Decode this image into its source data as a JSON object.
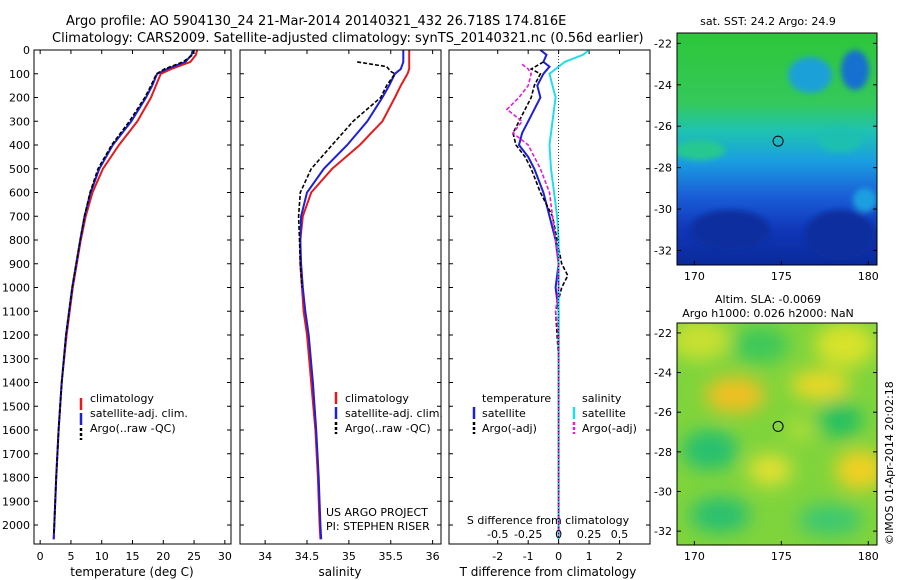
{
  "title": {
    "line1": "Argo profile: AO 5904130_24 21-Mar-2014 20140321_432 26.718S 174.816E",
    "line2": "Climatology: CARS2009. Satellite-adjusted climatology: synTS_20140321.nc (0.56d earlier)"
  },
  "credits": {
    "line1": "US ARGO PROJECT",
    "line2": "PI: STEPHEN RISER"
  },
  "side_stamp": "©IMOS 01-Apr-2014 20:02:18",
  "colors": {
    "climatology": "#e41a1c",
    "satellite": "#1f1fd6",
    "argo": "#000000",
    "sal_satellite": "#22dde8",
    "sal_argo": "#e020d0"
  },
  "chart_data": [
    {
      "type": "line",
      "id": "temperature",
      "xlabel": "temperature (deg C)",
      "ylabel": "",
      "xlim": [
        -1,
        31
      ],
      "ylim": [
        2080,
        0
      ],
      "xticks": [
        0,
        5,
        10,
        15,
        20,
        25,
        30
      ],
      "yticks": [
        0,
        100,
        200,
        300,
        400,
        500,
        600,
        700,
        800,
        900,
        1000,
        1100,
        1200,
        1300,
        1400,
        1500,
        1600,
        1700,
        1800,
        1900,
        2000
      ],
      "legend": [
        "climatology",
        "satellite-adj. clim.",
        "Argo(..raw -QC)"
      ],
      "series": [
        {
          "name": "climatology",
          "depth": [
            0,
            20,
            50,
            80,
            100,
            150,
            200,
            300,
            400,
            500,
            600,
            700,
            800,
            1000,
            1200,
            1400,
            1600,
            1800,
            2000,
            2060
          ],
          "values": [
            25.5,
            25.3,
            24.4,
            21.3,
            19.6,
            18.8,
            18.0,
            15.8,
            12.8,
            10.2,
            8.5,
            7.4,
            6.6,
            5.3,
            4.3,
            3.5,
            3.0,
            2.6,
            2.3,
            2.2
          ]
        },
        {
          "name": "satellite-adj. clim.",
          "depth": [
            0,
            20,
            50,
            80,
            100,
            150,
            200,
            300,
            400,
            500,
            600,
            700,
            800,
            1000,
            1200,
            1400,
            1600,
            1800,
            2000,
            2060
          ],
          "values": [
            24.8,
            24.6,
            23.6,
            20.6,
            19.0,
            18.2,
            17.2,
            14.8,
            11.8,
            9.6,
            8.2,
            7.2,
            6.5,
            5.2,
            4.2,
            3.5,
            3.0,
            2.6,
            2.3,
            2.2
          ]
        },
        {
          "name": "Argo(..raw -QC)",
          "depth": [
            0,
            20,
            50,
            80,
            100,
            150,
            200,
            300,
            400,
            500,
            600,
            700,
            800,
            1000,
            1200,
            1400,
            1600,
            1800,
            2000,
            2040
          ],
          "values": [
            25.0,
            24.8,
            23.2,
            20.2,
            18.9,
            18.0,
            17.0,
            14.5,
            11.6,
            9.4,
            8.1,
            7.2,
            6.5,
            5.2,
            4.2,
            3.5,
            3.0,
            2.6,
            2.3,
            2.2
          ]
        }
      ]
    },
    {
      "type": "line",
      "id": "salinity",
      "xlabel": "salinity",
      "xlim": [
        33.7,
        36.1
      ],
      "ylim": [
        2080,
        0
      ],
      "xticks": [
        34,
        34.5,
        35,
        35.5,
        36
      ],
      "legend": [
        "climatology",
        "satellite-adj. clim.",
        "Argo(..raw -QC)"
      ],
      "series": [
        {
          "name": "climatology",
          "depth": [
            0,
            50,
            80,
            100,
            150,
            200,
            300,
            400,
            500,
            600,
            700,
            800,
            900,
            1000,
            1100,
            1200,
            1400,
            1600,
            1800,
            2000,
            2060
          ],
          "values": [
            35.72,
            35.72,
            35.72,
            35.7,
            35.62,
            35.55,
            35.4,
            35.13,
            34.8,
            34.55,
            34.45,
            34.42,
            34.42,
            34.44,
            34.46,
            34.5,
            34.55,
            34.6,
            34.63,
            34.65,
            34.66
          ]
        },
        {
          "name": "satellite-adj. clim.",
          "depth": [
            0,
            50,
            80,
            100,
            150,
            200,
            300,
            400,
            500,
            600,
            700,
            800,
            900,
            1000,
            1100,
            1200,
            1400,
            1600,
            1800,
            2000,
            2060
          ],
          "values": [
            35.65,
            35.65,
            35.62,
            35.55,
            35.48,
            35.4,
            35.22,
            34.98,
            34.7,
            34.5,
            34.43,
            34.42,
            34.43,
            34.45,
            34.48,
            34.52,
            34.57,
            34.61,
            34.64,
            34.66,
            34.67
          ]
        },
        {
          "name": "Argo(..raw -QC)",
          "depth": [
            50,
            70,
            90,
            100,
            150,
            200,
            300,
            400,
            500,
            600,
            700,
            800,
            900,
            1000
          ],
          "values": [
            35.1,
            35.45,
            35.5,
            35.55,
            35.45,
            35.38,
            35.05,
            34.8,
            34.55,
            34.42,
            34.4,
            34.41,
            34.42,
            34.44
          ]
        }
      ]
    },
    {
      "type": "line",
      "id": "difference",
      "xlabel": "T difference from climatology",
      "xlabel2": "S difference from climatology",
      "xlim": [
        -3.6,
        3.0
      ],
      "ylim": [
        2080,
        0
      ],
      "xticks": [
        -2,
        -1,
        0,
        1,
        2
      ],
      "xticks2_labels": [
        "-0.5",
        "-0.25",
        "0",
        "0.25",
        "0.5"
      ],
      "xticks2_values": [
        -2,
        -1,
        0,
        1,
        2
      ],
      "legend_titles": [
        "temperature",
        "salinity"
      ],
      "legend": [
        "satellite",
        "Argo(-adj)",
        "satellite",
        "Argo(-adj)"
      ],
      "series": [
        {
          "name": "temperature satellite",
          "depth": [
            0,
            20,
            50,
            70,
            100,
            150,
            200,
            250,
            300,
            350,
            400,
            450,
            500,
            600,
            700,
            800,
            900,
            1000,
            1100,
            1200,
            1400,
            1600,
            1800,
            2000,
            2060
          ],
          "values": [
            -0.6,
            -0.4,
            -0.5,
            -0.3,
            -0.5,
            -0.7,
            -0.6,
            -0.8,
            -1.0,
            -1.2,
            -1.3,
            -1.0,
            -0.8,
            -0.5,
            -0.3,
            -0.1,
            0.0,
            -0.1,
            0.0,
            0.0,
            0.0,
            0.0,
            0.0,
            0.0,
            0.0
          ]
        },
        {
          "name": "temperature Argo(-adj)",
          "depth": [
            50,
            80,
            100,
            150,
            200,
            250,
            300,
            350,
            400,
            450,
            500,
            600,
            700,
            800,
            900,
            950,
            1000,
            1100,
            1200,
            1300,
            1400,
            1500,
            1600,
            1800,
            2000,
            2040
          ],
          "values": [
            -0.5,
            -0.9,
            -0.6,
            -0.8,
            -0.9,
            -1.1,
            -1.3,
            -1.5,
            -1.4,
            -1.1,
            -0.9,
            -0.6,
            -0.2,
            -0.05,
            0.1,
            0.3,
            0.1,
            -0.1,
            -0.05,
            0.0,
            0.0,
            0.0,
            0.0,
            0.0,
            0.0,
            0.0
          ]
        },
        {
          "name": "salinity satellite",
          "depth": [
            0,
            20,
            50,
            100,
            150,
            200,
            300,
            400,
            500,
            600,
            700,
            800,
            1000,
            1200,
            1400,
            1600,
            1800,
            2000,
            2060
          ],
          "values": [
            1.0,
            0.8,
            0.2,
            -0.3,
            -0.2,
            -0.1,
            -0.2,
            -0.3,
            -0.25,
            -0.15,
            -0.05,
            0.0,
            0.0,
            0.0,
            0.0,
            0.0,
            0.0,
            0.0,
            0.0
          ]
        },
        {
          "name": "salinity Argo(-adj)",
          "depth": [
            60,
            80,
            100,
            150,
            200,
            250,
            300,
            350,
            400,
            500,
            600,
            700,
            800,
            900,
            1000,
            1100,
            1200,
            1400,
            1600,
            1800,
            2000,
            2040
          ],
          "values": [
            -1.2,
            -1.0,
            -0.9,
            -1.0,
            -1.3,
            -1.7,
            -1.2,
            -1.5,
            -1.0,
            -0.6,
            -0.3,
            -0.2,
            -0.1,
            0.0,
            0.0,
            -0.1,
            0.0,
            0.0,
            0.0,
            0.0,
            0.0,
            0.0
          ]
        }
      ]
    },
    {
      "type": "heatmap",
      "id": "sst_map",
      "title": "sat. SST: 24.2 Argo: 24.9",
      "xlim": [
        169,
        180.5
      ],
      "ylim": [
        -32.7,
        -21.5
      ],
      "xticks": [
        170,
        175,
        180
      ],
      "yticks": [
        -22,
        -24,
        -26,
        -28,
        -30,
        -32
      ],
      "marker": {
        "lon": 174.816,
        "lat": -26.718
      }
    },
    {
      "type": "heatmap",
      "id": "sla_map",
      "title_line1": "Altim. SLA: -0.0069",
      "title_line2": "Argo h1000: 0.026 h2000: NaN",
      "xlim": [
        169,
        180.5
      ],
      "ylim": [
        -32.7,
        -21.5
      ],
      "xticks": [
        170,
        175,
        180
      ],
      "yticks": [
        -22,
        -24,
        -26,
        -28,
        -30,
        -32
      ],
      "marker": {
        "lon": 174.816,
        "lat": -26.718
      }
    }
  ]
}
